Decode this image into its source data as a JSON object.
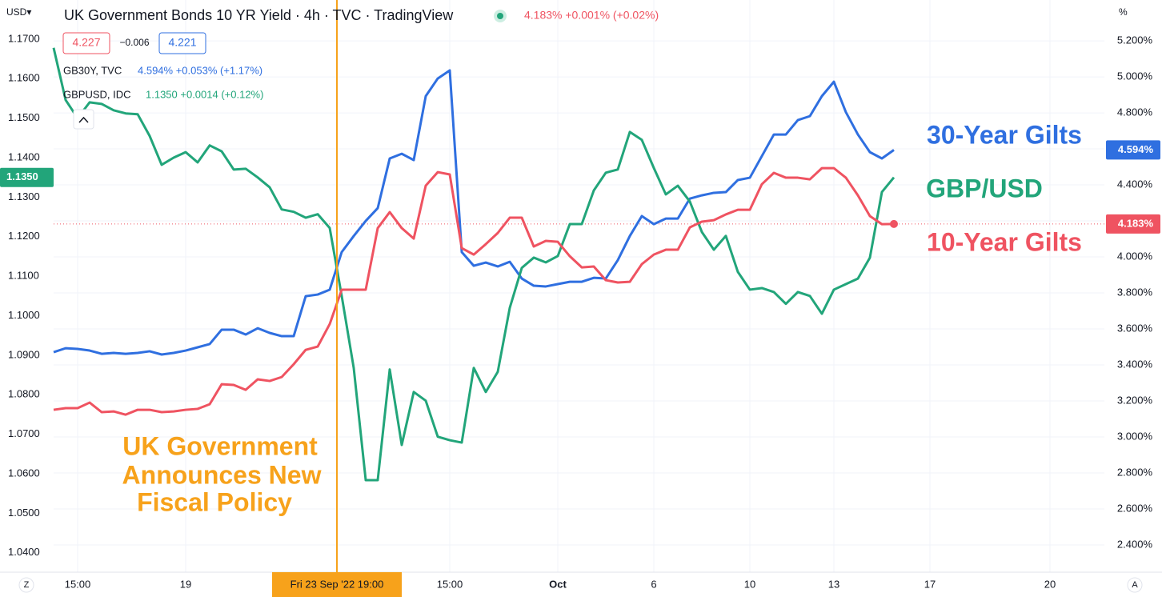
{
  "chart_data": {
    "type": "line",
    "header": {
      "currency": "USD▾",
      "title": "UK Government Bonds 10 YR Yield · 4h · TVC · TradingView",
      "quote": "4.183%  +0.001% (+0.02%)",
      "bid": "4.227",
      "spread": "−0.006",
      "ask": "4.221",
      "unit": "%",
      "left_corner": "Z",
      "right_corner": "A"
    },
    "crosshair_label": "Fri 23 Sep '22  19:00",
    "annotation": [
      "UK Government",
      "Announces New",
      "Fiscal Policy"
    ],
    "categories": [
      null,
      null,
      "15:00",
      null,
      null,
      null,
      null,
      null,
      null,
      null,
      null,
      "19",
      null,
      null,
      null,
      null,
      null,
      null,
      null,
      null,
      null,
      null,
      null,
      null,
      null,
      null,
      null,
      null,
      null,
      null,
      null,
      null,
      null,
      "15:00",
      null,
      null,
      null,
      null,
      null,
      null,
      null,
      null,
      "Oct",
      null,
      null,
      null,
      null,
      null,
      null,
      null,
      "6",
      null,
      null,
      null,
      null,
      null,
      null,
      null,
      "10",
      null,
      null,
      null,
      null,
      null,
      null,
      "13",
      null,
      null,
      null,
      null,
      null,
      null,
      null,
      "17",
      null,
      null,
      null,
      null,
      null,
      null,
      null,
      null,
      null,
      "20",
      null,
      null,
      null,
      null
    ],
    "ylim": [
      1.0351,
      1.1799
    ],
    "yticks": [
      {
        "value": 1.17,
        "label": "1.1700"
      },
      {
        "value": 1.16,
        "label": "1.1600"
      },
      {
        "value": 1.15,
        "label": "1.1500"
      },
      {
        "value": 1.14,
        "label": "1.1400"
      },
      {
        "value": 1.13,
        "label": "1.1300"
      },
      {
        "value": 1.12,
        "label": "1.1200"
      },
      {
        "value": 1.11,
        "label": "1.1100"
      },
      {
        "value": 1.1,
        "label": "1.1000"
      },
      {
        "value": 1.09,
        "label": "1.0900"
      },
      {
        "value": 1.08,
        "label": "1.0800"
      },
      {
        "value": 1.07,
        "label": "1.0700"
      },
      {
        "value": 1.06,
        "label": "1.0600"
      },
      {
        "value": 1.05,
        "label": "1.0500"
      },
      {
        "value": 1.04,
        "label": "1.0400"
      }
    ],
    "y2lim": [
      2.249,
      5.427
    ],
    "y2ticks": [
      {
        "value": 5.2,
        "label": "5.200%"
      },
      {
        "value": 5.0,
        "label": "5.000%"
      },
      {
        "value": 4.8,
        "label": "4.800%"
      },
      {
        "value": 4.6,
        "label": "4.600%"
      },
      {
        "value": 4.4,
        "label": "4.400%"
      },
      {
        "value": 4.2,
        "label": "4.200%"
      },
      {
        "value": 4.0,
        "label": "4.000%"
      },
      {
        "value": 3.8,
        "label": "3.800%"
      },
      {
        "value": 3.6,
        "label": "3.600%"
      },
      {
        "value": 3.4,
        "label": "3.400%"
      },
      {
        "value": 3.2,
        "label": "3.200%"
      },
      {
        "value": 3.0,
        "label": "3.000%"
      },
      {
        "value": 2.8,
        "label": "2.800%"
      },
      {
        "value": 2.6,
        "label": "2.600%"
      },
      {
        "value": 2.4,
        "label": "2.400%"
      }
    ],
    "grid": true,
    "series": [
      {
        "name": "30-Year Gilts",
        "symbol": "GB30Y, TVC",
        "quote": "4.594%  +0.053% (+1.17%)",
        "last_label": "4.594%",
        "color": "#2f6fe0",
        "axis": "y2",
        "values": [
          3.471,
          3.493,
          3.489,
          3.48,
          3.462,
          3.467,
          3.462,
          3.467,
          3.476,
          3.458,
          3.467,
          3.48,
          3.498,
          3.516,
          3.596,
          3.596,
          3.569,
          3.604,
          3.578,
          3.56,
          3.56,
          3.782,
          3.791,
          3.818,
          4.027,
          4.116,
          4.2,
          4.271,
          4.547,
          4.573,
          4.538,
          4.893,
          4.991,
          5.036,
          4.027,
          3.951,
          3.969,
          3.947,
          3.973,
          3.88,
          3.84,
          3.836,
          3.849,
          3.862,
          3.862,
          3.884,
          3.88,
          3.982,
          4.116,
          4.227,
          4.182,
          4.213,
          4.213,
          4.324,
          4.342,
          4.356,
          4.36,
          4.427,
          4.44,
          4.56,
          4.68,
          4.68,
          4.76,
          4.782,
          4.893,
          4.973,
          4.804,
          4.68,
          4.582,
          4.547,
          4.594,
          null,
          null,
          null,
          null,
          null,
          null,
          null,
          null,
          null,
          null,
          null,
          null,
          null,
          null,
          null,
          null,
          null
        ]
      },
      {
        "name": "GBP/USD",
        "symbol": "GBPUSD, IDC",
        "quote": "1.1350  +0.0014 (+0.12%)",
        "last_label": "1.1350",
        "color": "#22a57a",
        "axis": "y",
        "values": [
          1.1678,
          1.1546,
          1.15,
          1.154,
          1.1536,
          1.152,
          1.1512,
          1.151,
          1.1455,
          1.1382,
          1.14,
          1.1414,
          1.1388,
          1.1431,
          1.1416,
          1.137,
          1.1372,
          1.135,
          1.1325,
          1.1269,
          1.1263,
          1.1248,
          1.1257,
          1.1222,
          1.105,
          1.0868,
          1.0584,
          1.0584,
          1.0864,
          1.0673,
          1.0807,
          1.0785,
          1.0694,
          1.0685,
          1.0679,
          1.0868,
          1.0807,
          1.0858,
          1.102,
          1.1121,
          1.1147,
          1.1135,
          1.1151,
          1.1232,
          1.1232,
          1.1317,
          1.1362,
          1.137,
          1.1465,
          1.1445,
          1.1374,
          1.1307,
          1.1329,
          1.1289,
          1.1212,
          1.1167,
          1.1202,
          1.1111,
          1.1066,
          1.107,
          1.106,
          1.103,
          1.106,
          1.105,
          1.1005,
          1.1066,
          1.108,
          1.1094,
          1.1147,
          1.1313,
          1.135,
          null,
          null,
          null,
          null,
          null,
          null,
          null,
          null,
          null,
          null,
          null,
          null,
          null,
          null,
          null,
          null,
          null
        ]
      },
      {
        "name": "10-Year Gilts",
        "last_label": "4.183%",
        "color": "#ef5361",
        "axis": "y2",
        "values": [
          3.151,
          3.16,
          3.16,
          3.191,
          3.138,
          3.142,
          3.124,
          3.151,
          3.151,
          3.138,
          3.142,
          3.151,
          3.156,
          3.182,
          3.293,
          3.289,
          3.262,
          3.32,
          3.311,
          3.333,
          3.404,
          3.484,
          3.502,
          3.627,
          3.818,
          3.818,
          3.818,
          4.16,
          4.249,
          4.16,
          4.102,
          4.396,
          4.471,
          4.458,
          4.049,
          4.013,
          4.071,
          4.133,
          4.218,
          4.218,
          4.058,
          4.089,
          4.084,
          4.004,
          3.942,
          3.947,
          3.871,
          3.858,
          3.862,
          3.96,
          4.013,
          4.04,
          4.04,
          4.164,
          4.196,
          4.204,
          4.236,
          4.262,
          4.262,
          4.404,
          4.467,
          4.44,
          4.44,
          4.431,
          4.493,
          4.493,
          4.44,
          4.342,
          4.227,
          4.182,
          4.183,
          null,
          null,
          null,
          null,
          null,
          null,
          null,
          null,
          null,
          null,
          null,
          null,
          null,
          null,
          null,
          null,
          null
        ]
      }
    ]
  }
}
